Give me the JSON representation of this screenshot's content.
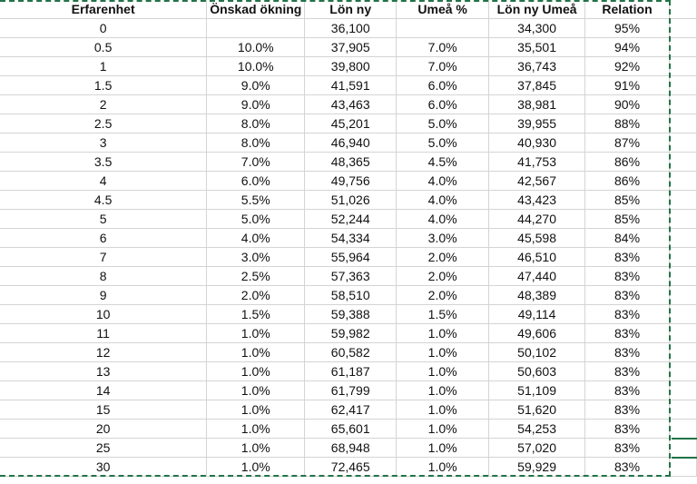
{
  "headers": [
    "Erfarenhet",
    "Önskad ökning",
    "Lön ny",
    "Umeå %",
    "Lön ny Umeå",
    "Relation"
  ],
  "rows": [
    [
      "0",
      "",
      "36,100",
      "",
      "34,300",
      "95%"
    ],
    [
      "0.5",
      "10.0%",
      "37,905",
      "7.0%",
      "35,501",
      "94%"
    ],
    [
      "1",
      "10.0%",
      "39,800",
      "7.0%",
      "36,743",
      "92%"
    ],
    [
      "1.5",
      "9.0%",
      "41,591",
      "6.0%",
      "37,845",
      "91%"
    ],
    [
      "2",
      "9.0%",
      "43,463",
      "6.0%",
      "38,981",
      "90%"
    ],
    [
      "2.5",
      "8.0%",
      "45,201",
      "5.0%",
      "39,955",
      "88%"
    ],
    [
      "3",
      "8.0%",
      "46,940",
      "5.0%",
      "40,930",
      "87%"
    ],
    [
      "3.5",
      "7.0%",
      "48,365",
      "4.5%",
      "41,753",
      "86%"
    ],
    [
      "4",
      "6.0%",
      "49,756",
      "4.0%",
      "42,567",
      "86%"
    ],
    [
      "4.5",
      "5.5%",
      "51,026",
      "4.0%",
      "43,423",
      "85%"
    ],
    [
      "5",
      "5.0%",
      "52,244",
      "4.0%",
      "44,270",
      "85%"
    ],
    [
      "6",
      "4.0%",
      "54,334",
      "3.0%",
      "45,598",
      "84%"
    ],
    [
      "7",
      "3.0%",
      "55,964",
      "2.0%",
      "46,510",
      "83%"
    ],
    [
      "8",
      "2.5%",
      "57,363",
      "2.0%",
      "47,440",
      "83%"
    ],
    [
      "9",
      "2.0%",
      "58,510",
      "2.0%",
      "48,389",
      "83%"
    ],
    [
      "10",
      "1.5%",
      "59,388",
      "1.5%",
      "49,114",
      "83%"
    ],
    [
      "11",
      "1.0%",
      "59,982",
      "1.0%",
      "49,606",
      "83%"
    ],
    [
      "12",
      "1.0%",
      "60,582",
      "1.0%",
      "50,102",
      "83%"
    ],
    [
      "13",
      "1.0%",
      "61,187",
      "1.0%",
      "50,603",
      "83%"
    ],
    [
      "14",
      "1.0%",
      "61,799",
      "1.0%",
      "51,109",
      "83%"
    ],
    [
      "15",
      "1.0%",
      "62,417",
      "1.0%",
      "51,620",
      "83%"
    ],
    [
      "20",
      "1.0%",
      "65,601",
      "1.0%",
      "54,253",
      "83%"
    ],
    [
      "25",
      "1.0%",
      "68,948",
      "1.0%",
      "57,020",
      "83%"
    ],
    [
      "30",
      "1.0%",
      "72,465",
      "1.0%",
      "59,929",
      "83%"
    ]
  ],
  "colors": {
    "gridline": "#d4d4d4",
    "selection": "#217346",
    "text": "#111111"
  }
}
